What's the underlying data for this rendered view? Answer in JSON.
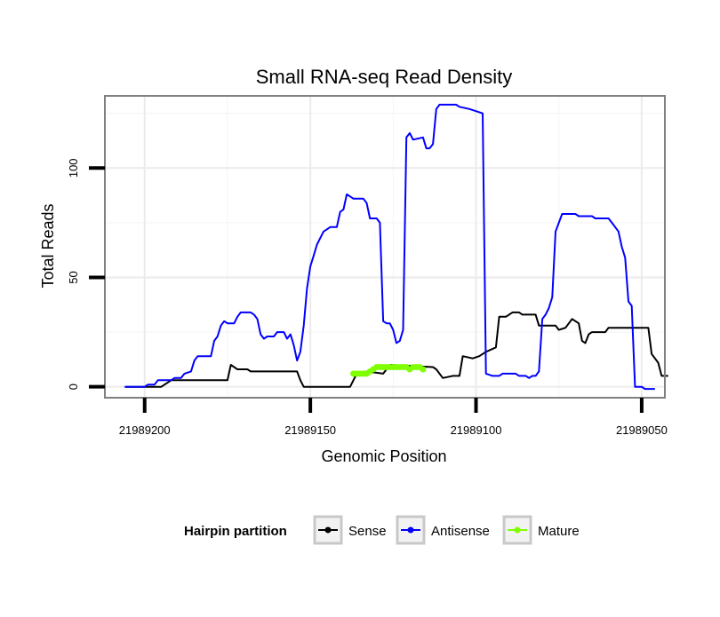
{
  "chart_data": {
    "type": "line",
    "title": "Small RNA-seq Read Density",
    "xlabel": "Genomic Position",
    "ylabel": "Total Reads",
    "x_reversed": true,
    "xlim": [
      21989212,
      21989043
    ],
    "ylim": [
      -5,
      133
    ],
    "x_ticks": [
      21989200,
      21989150,
      21989100,
      21989050
    ],
    "x_tick_labels": [
      "21989200",
      "21989150",
      "21989100",
      "21989050"
    ],
    "y_ticks": [
      0,
      50,
      100
    ],
    "y_tick_labels": [
      "0",
      "50",
      "100"
    ],
    "grid": true,
    "legend": {
      "title": "Hairpin partition",
      "position": "bottom",
      "entries": [
        "Sense",
        "Antisense",
        "Mature"
      ]
    },
    "series": [
      {
        "name": "Sense",
        "color": "#000000",
        "points": [
          [
            21989206,
            0
          ],
          [
            21989195,
            0
          ],
          [
            21989192,
            3
          ],
          [
            21989178,
            3
          ],
          [
            21989177,
            3
          ],
          [
            21989175,
            3
          ],
          [
            21989174,
            10
          ],
          [
            21989172,
            8
          ],
          [
            21989169,
            8
          ],
          [
            21989168,
            7
          ],
          [
            21989154,
            7
          ],
          [
            21989153,
            3
          ],
          [
            21989152,
            0
          ],
          [
            21989138,
            0
          ],
          [
            21989136,
            6
          ],
          [
            21989133,
            7
          ],
          [
            21989128,
            6
          ],
          [
            21989126,
            10
          ],
          [
            21989113,
            9
          ],
          [
            21989112,
            8
          ],
          [
            21989110,
            4
          ],
          [
            21989107,
            5
          ],
          [
            21989105,
            5
          ],
          [
            21989104,
            14
          ],
          [
            21989101,
            13
          ],
          [
            21989099,
            14
          ],
          [
            21989097,
            16
          ],
          [
            21989094,
            18
          ],
          [
            21989093,
            32
          ],
          [
            21989091,
            32
          ],
          [
            21989089,
            34
          ],
          [
            21989087,
            34
          ],
          [
            21989086,
            33
          ],
          [
            21989082,
            33
          ],
          [
            21989081,
            28
          ],
          [
            21989079,
            28
          ],
          [
            21989076,
            28
          ],
          [
            21989075,
            26
          ],
          [
            21989073,
            27
          ],
          [
            21989071,
            31
          ],
          [
            21989069,
            29
          ],
          [
            21989068,
            21
          ],
          [
            21989067,
            20
          ],
          [
            21989066,
            24
          ],
          [
            21989065,
            25
          ],
          [
            21989061,
            25
          ],
          [
            21989060,
            27
          ],
          [
            21989048,
            27
          ],
          [
            21989047,
            15
          ],
          [
            21989045,
            11
          ],
          [
            21989044,
            5
          ],
          [
            21989042,
            5
          ]
        ]
      },
      {
        "name": "Antisense",
        "color": "#0000ff",
        "points": [
          [
            21989206,
            0
          ],
          [
            21989200,
            0
          ],
          [
            21989199,
            1
          ],
          [
            21989197,
            1
          ],
          [
            21989196,
            3
          ],
          [
            21989192,
            3
          ],
          [
            21989191,
            4
          ],
          [
            21989189,
            4
          ],
          [
            21989188,
            6
          ],
          [
            21989186,
            7
          ],
          [
            21989185,
            12
          ],
          [
            21989184,
            14
          ],
          [
            21989180,
            14
          ],
          [
            21989179,
            21
          ],
          [
            21989178,
            23
          ],
          [
            21989177,
            28
          ],
          [
            21989176,
            30
          ],
          [
            21989175,
            29
          ],
          [
            21989173,
            29
          ],
          [
            21989172,
            32
          ],
          [
            21989171,
            34
          ],
          [
            21989168,
            34
          ],
          [
            21989167,
            33
          ],
          [
            21989166,
            31
          ],
          [
            21989165,
            24
          ],
          [
            21989164,
            22
          ],
          [
            21989163,
            23
          ],
          [
            21989161,
            23
          ],
          [
            21989160,
            25
          ],
          [
            21989158,
            25
          ],
          [
            21989157,
            22
          ],
          [
            21989156,
            24
          ],
          [
            21989155,
            19
          ],
          [
            21989154,
            12
          ],
          [
            21989153,
            16
          ],
          [
            21989152,
            28
          ],
          [
            21989151,
            45
          ],
          [
            21989150,
            55
          ],
          [
            21989149,
            60
          ],
          [
            21989148,
            65
          ],
          [
            21989146,
            71
          ],
          [
            21989145,
            72
          ],
          [
            21989144,
            73
          ],
          [
            21989142,
            73
          ],
          [
            21989141,
            80
          ],
          [
            21989140,
            81
          ],
          [
            21989139,
            88
          ],
          [
            21989138,
            87
          ],
          [
            21989137,
            86
          ],
          [
            21989134,
            86
          ],
          [
            21989133,
            84
          ],
          [
            21989132,
            77
          ],
          [
            21989130,
            77
          ],
          [
            21989129,
            75
          ],
          [
            21989128,
            30
          ],
          [
            21989127,
            29
          ],
          [
            21989126,
            29
          ],
          [
            21989125,
            26
          ],
          [
            21989124,
            20
          ],
          [
            21989123,
            21
          ],
          [
            21989122,
            26
          ],
          [
            21989121,
            114
          ],
          [
            21989120,
            116
          ],
          [
            21989119,
            113
          ],
          [
            21989116,
            114
          ],
          [
            21989115,
            109
          ],
          [
            21989114,
            109
          ],
          [
            21989113,
            111
          ],
          [
            21989112,
            127
          ],
          [
            21989111,
            129
          ],
          [
            21989106,
            129
          ],
          [
            21989105,
            128
          ],
          [
            21989102,
            127
          ],
          [
            21989100,
            126
          ],
          [
            21989098,
            125
          ],
          [
            21989097,
            6
          ],
          [
            21989095,
            5
          ],
          [
            21989093,
            5
          ],
          [
            21989092,
            6
          ],
          [
            21989088,
            6
          ],
          [
            21989087,
            5
          ],
          [
            21989085,
            5
          ],
          [
            21989084,
            4
          ],
          [
            21989083,
            5
          ],
          [
            21989082,
            5
          ],
          [
            21989081,
            7
          ],
          [
            21989080,
            31
          ],
          [
            21989079,
            33
          ],
          [
            21989078,
            36
          ],
          [
            21989077,
            41
          ],
          [
            21989076,
            71
          ],
          [
            21989075,
            75
          ],
          [
            21989074,
            79
          ],
          [
            21989070,
            79
          ],
          [
            21989069,
            78
          ],
          [
            21989065,
            78
          ],
          [
            21989064,
            77
          ],
          [
            21989060,
            77
          ],
          [
            21989059,
            75
          ],
          [
            21989058,
            73
          ],
          [
            21989057,
            71
          ],
          [
            21989056,
            64
          ],
          [
            21989055,
            59
          ],
          [
            21989054,
            39
          ],
          [
            21989053,
            37
          ],
          [
            21989052,
            0
          ],
          [
            21989050,
            0
          ],
          [
            21989049,
            -1
          ],
          [
            21989046,
            -1
          ]
        ]
      },
      {
        "name": "Mature",
        "color": "#7fff00",
        "points": [
          [
            21989137,
            6
          ],
          [
            21989136,
            6
          ],
          [
            21989135,
            6
          ],
          [
            21989134,
            6
          ],
          [
            21989133,
            6
          ],
          [
            21989132,
            7
          ],
          [
            21989131,
            8
          ],
          [
            21989130,
            9
          ],
          [
            21989129,
            9
          ],
          [
            21989128,
            9
          ],
          [
            21989127,
            9
          ],
          [
            21989126,
            9
          ],
          [
            21989125,
            9
          ],
          [
            21989124,
            9
          ],
          [
            21989123,
            9
          ],
          [
            21989122,
            9
          ],
          [
            21989121,
            9
          ],
          [
            21989120,
            8
          ],
          [
            21989119,
            9
          ],
          [
            21989118,
            9
          ],
          [
            21989117,
            9
          ],
          [
            21989116,
            8
          ]
        ]
      }
    ]
  }
}
